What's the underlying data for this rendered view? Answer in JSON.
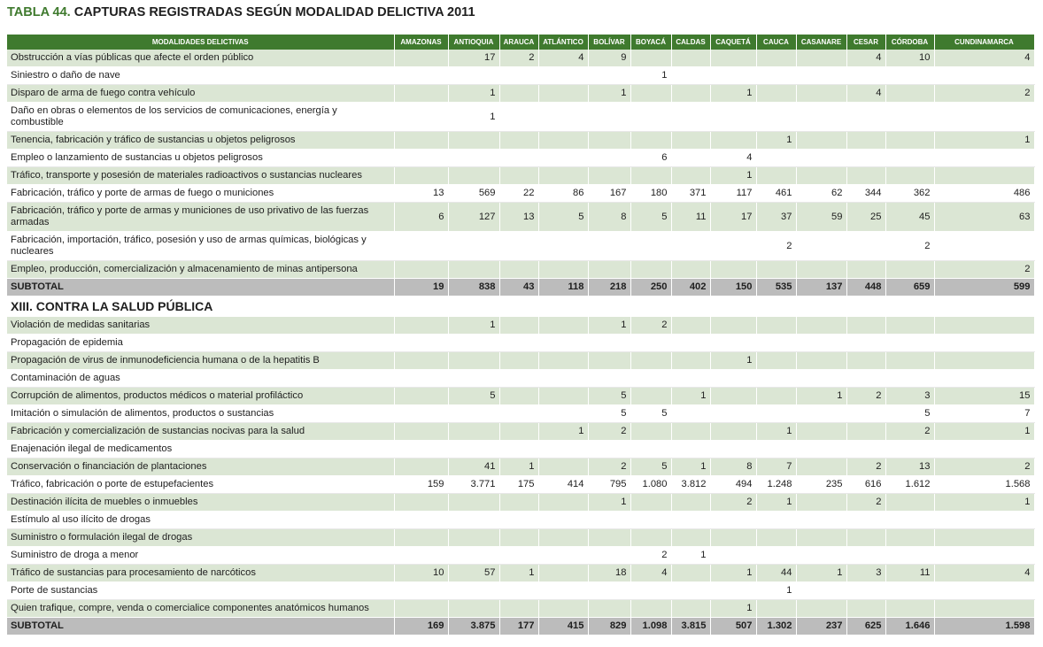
{
  "title_number": "TABLA 44.",
  "title_text": "CAPTURAS REGISTRADAS SEGÚN MODALIDAD DELICTIVA 2011",
  "columns": [
    "MODALIDADES DELICTIVAS",
    "AMAZONAS",
    "ANTIOQUIA",
    "ARAUCA",
    "ATLÁNTICO",
    "BOLÍVAR",
    "BOYACÁ",
    "CALDAS",
    "CAQUETÁ",
    "CAUCA",
    "CASANARE",
    "CESAR",
    "CÓRDOBA",
    "CUNDINAMARCA"
  ],
  "rows": [
    {
      "type": "data",
      "label": "Obstrucción a vías públicas que afecte el orden público",
      "values": [
        "",
        "17",
        "2",
        "4",
        "9",
        "",
        "",
        "",
        "",
        "",
        "4",
        "10",
        "4"
      ]
    },
    {
      "type": "data",
      "label": "Siniestro o daño de nave",
      "values": [
        "",
        "",
        "",
        "",
        "",
        "1",
        "",
        "",
        "",
        "",
        "",
        "",
        ""
      ]
    },
    {
      "type": "data",
      "label": "Disparo de arma de fuego contra vehículo",
      "values": [
        "",
        "1",
        "",
        "",
        "1",
        "",
        "",
        "1",
        "",
        "",
        "4",
        "",
        "2"
      ]
    },
    {
      "type": "data",
      "tall": true,
      "label": "Daño en obras o elementos de los servicios de comunicaciones, energía y combustible",
      "values": [
        "",
        "1",
        "",
        "",
        "",
        "",
        "",
        "",
        "",
        "",
        "",
        "",
        ""
      ]
    },
    {
      "type": "data",
      "label": "Tenencia, fabricación y tráfico de sustancias u objetos peligrosos",
      "values": [
        "",
        "",
        "",
        "",
        "",
        "",
        "",
        "",
        "1",
        "",
        "",
        "",
        "1"
      ]
    },
    {
      "type": "data",
      "label": "Empleo o lanzamiento de sustancias u objetos peligrosos",
      "values": [
        "",
        "",
        "",
        "",
        "",
        "6",
        "",
        "4",
        "",
        "",
        "",
        "",
        ""
      ]
    },
    {
      "type": "data",
      "label": "Tráfico, transporte y posesión de materiales radioactivos o sustancias nucleares",
      "values": [
        "",
        "",
        "",
        "",
        "",
        "",
        "",
        "1",
        "",
        "",
        "",
        "",
        ""
      ]
    },
    {
      "type": "data",
      "label": "Fabricación, tráfico y porte de armas de fuego o municiones",
      "values": [
        "13",
        "569",
        "22",
        "86",
        "167",
        "180",
        "371",
        "117",
        "461",
        "62",
        "344",
        "362",
        "486"
      ]
    },
    {
      "type": "data",
      "tall": true,
      "label": "Fabricación, tráfico y porte de armas y municiones de uso privativo de las fuerzas armadas",
      "values": [
        "6",
        "127",
        "13",
        "5",
        "8",
        "5",
        "11",
        "17",
        "37",
        "59",
        "25",
        "45",
        "63"
      ]
    },
    {
      "type": "data",
      "tall": true,
      "label": "Fabricación, importación, tráfico, posesión y uso de armas químicas, biológicas y nucleares",
      "values": [
        "",
        "",
        "",
        "",
        "",
        "",
        "",
        "",
        "2",
        "",
        "",
        "2",
        ""
      ]
    },
    {
      "type": "data",
      "label": "Empleo, producción, comercialización y almacenamiento de minas antipersona",
      "values": [
        "",
        "",
        "",
        "",
        "",
        "",
        "",
        "",
        "",
        "",
        "",
        "",
        "2"
      ]
    },
    {
      "type": "subtotal",
      "label": "SUBTOTAL",
      "values": [
        "19",
        "838",
        "43",
        "118",
        "218",
        "250",
        "402",
        "150",
        "535",
        "137",
        "448",
        "659",
        "599"
      ]
    },
    {
      "type": "section",
      "label": "XIII. CONTRA LA SALUD PÚBLICA"
    },
    {
      "type": "data",
      "label": "Violación de medidas sanitarias",
      "values": [
        "",
        "1",
        "",
        "",
        "1",
        "2",
        "",
        "",
        "",
        "",
        "",
        "",
        ""
      ]
    },
    {
      "type": "data",
      "label": "Propagación de epidemia",
      "values": [
        "",
        "",
        "",
        "",
        "",
        "",
        "",
        "",
        "",
        "",
        "",
        "",
        ""
      ]
    },
    {
      "type": "data",
      "label": "Propagación de virus de inmunodeficiencia humana o de la hepatitis B",
      "values": [
        "",
        "",
        "",
        "",
        "",
        "",
        "",
        "1",
        "",
        "",
        "",
        "",
        ""
      ]
    },
    {
      "type": "data",
      "label": "Contaminación de aguas",
      "values": [
        "",
        "",
        "",
        "",
        "",
        "",
        "",
        "",
        "",
        "",
        "",
        "",
        ""
      ]
    },
    {
      "type": "data",
      "label": "Corrupción de alimentos, productos médicos o material profiláctico",
      "values": [
        "",
        "5",
        "",
        "",
        "5",
        "",
        "1",
        "",
        "",
        "1",
        "2",
        "3",
        "15"
      ]
    },
    {
      "type": "data",
      "label": "Imitación o simulación de alimentos, productos o sustancias",
      "values": [
        "",
        "",
        "",
        "",
        "5",
        "5",
        "",
        "",
        "",
        "",
        "",
        "5",
        "7"
      ]
    },
    {
      "type": "data",
      "label": "Fabricación y comercialización de sustancias nocivas para la salud",
      "values": [
        "",
        "",
        "",
        "1",
        "2",
        "",
        "",
        "",
        "1",
        "",
        "",
        "2",
        "1"
      ]
    },
    {
      "type": "data",
      "label": "Enajenación ilegal de medicamentos",
      "values": [
        "",
        "",
        "",
        "",
        "",
        "",
        "",
        "",
        "",
        "",
        "",
        "",
        ""
      ]
    },
    {
      "type": "data",
      "label": "Conservación o financiación de plantaciones",
      "values": [
        "",
        "41",
        "1",
        "",
        "2",
        "5",
        "1",
        "8",
        "7",
        "",
        "2",
        "13",
        "2"
      ]
    },
    {
      "type": "data",
      "label": "Tráfico, fabricación o porte de estupefacientes",
      "values": [
        "159",
        "3.771",
        "175",
        "414",
        "795",
        "1.080",
        "3.812",
        "494",
        "1.248",
        "235",
        "616",
        "1.612",
        "1.568"
      ]
    },
    {
      "type": "data",
      "label": "Destinación ilícita de muebles o inmuebles",
      "values": [
        "",
        "",
        "",
        "",
        "1",
        "",
        "",
        "2",
        "1",
        "",
        "2",
        "",
        "1"
      ]
    },
    {
      "type": "data",
      "label": "Estímulo al uso ilícito de drogas",
      "values": [
        "",
        "",
        "",
        "",
        "",
        "",
        "",
        "",
        "",
        "",
        "",
        "",
        ""
      ]
    },
    {
      "type": "data",
      "label": "Suministro o formulación ilegal de drogas",
      "values": [
        "",
        "",
        "",
        "",
        "",
        "",
        "",
        "",
        "",
        "",
        "",
        "",
        ""
      ]
    },
    {
      "type": "data",
      "label": "Suministro de droga a menor",
      "values": [
        "",
        "",
        "",
        "",
        "",
        "2",
        "1",
        "",
        "",
        "",
        "",
        "",
        ""
      ]
    },
    {
      "type": "data",
      "label": "Tráfico de sustancias para procesamiento de narcóticos",
      "values": [
        "10",
        "57",
        "1",
        "",
        "18",
        "4",
        "",
        "1",
        "44",
        "1",
        "3",
        "11",
        "4"
      ]
    },
    {
      "type": "data",
      "label": "Porte de sustancias",
      "values": [
        "",
        "",
        "",
        "",
        "",
        "",
        "",
        "",
        "1",
        "",
        "",
        "",
        ""
      ]
    },
    {
      "type": "data",
      "label": "Quien trafique, compre, venda o comercialice componentes anatómicos humanos",
      "values": [
        "",
        "",
        "",
        "",
        "",
        "",
        "",
        "1",
        "",
        "",
        "",
        "",
        ""
      ]
    },
    {
      "type": "subtotal",
      "label": "SUBTOTAL",
      "values": [
        "169",
        "3.875",
        "177",
        "415",
        "829",
        "1.098",
        "3.815",
        "507",
        "1.302",
        "237",
        "625",
        "1.646",
        "1.598"
      ]
    }
  ]
}
